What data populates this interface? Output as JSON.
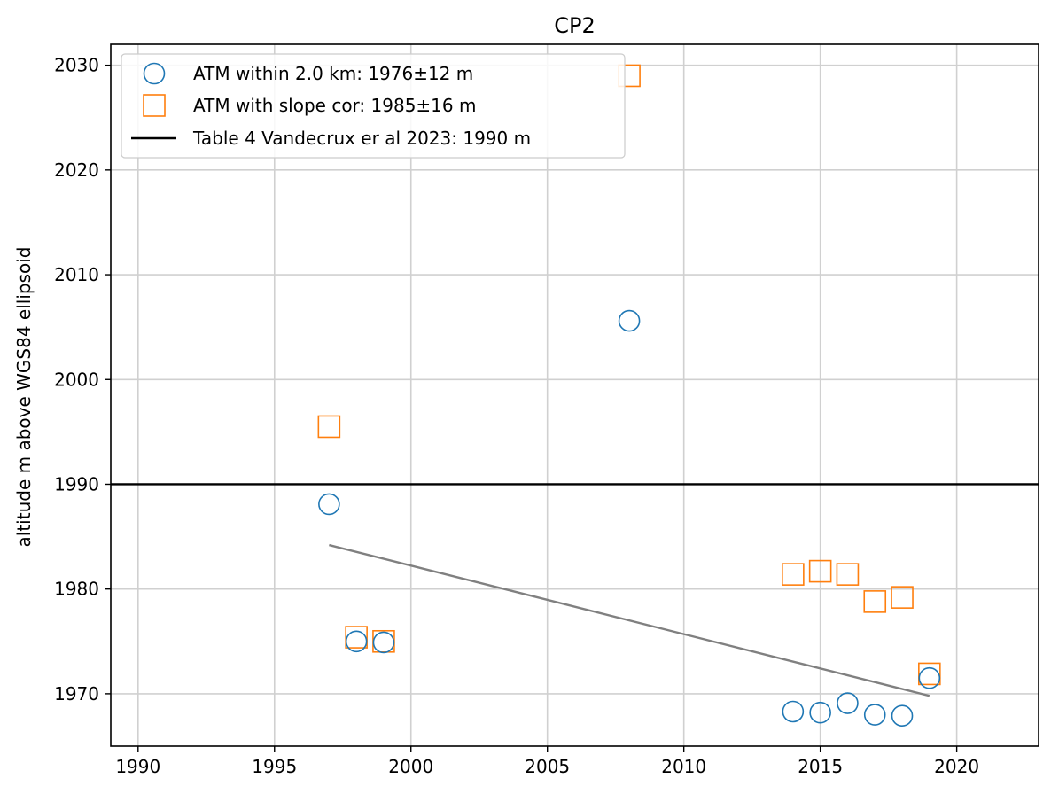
{
  "chart_data": {
    "type": "scatter",
    "title": "CP2",
    "xlabel": "",
    "ylabel": "altitude m above WGS84 ellipsoid",
    "xlim": [
      1989,
      2023
    ],
    "ylim": [
      1965,
      2032
    ],
    "xticks": [
      1990,
      1995,
      2000,
      2005,
      2010,
      2015,
      2020
    ],
    "yticks": [
      1970,
      1980,
      1990,
      2000,
      2010,
      2020,
      2030
    ],
    "grid": true,
    "legend_position": "top-left",
    "series": [
      {
        "name": "ATM within 2.0 km: 1976±12 m",
        "marker": "circle",
        "color": "#1f77b4",
        "x": [
          1997,
          1998,
          1999,
          2008,
          2014,
          2015,
          2016,
          2017,
          2018,
          2019
        ],
        "y": [
          1988.1,
          1975.0,
          1974.9,
          2005.6,
          1968.3,
          1968.2,
          1969.1,
          1968.0,
          1967.9,
          1971.5
        ]
      },
      {
        "name": "ATM with slope cor: 1985±16 m",
        "marker": "square",
        "color": "#ff7f0e",
        "x": [
          1997,
          1998,
          1999,
          2008,
          2014,
          2015,
          2016,
          2017,
          2018,
          2019
        ],
        "y": [
          1995.5,
          1975.4,
          1975.0,
          2029.0,
          1981.4,
          1981.7,
          1981.4,
          1978.8,
          1979.2,
          1971.9
        ]
      }
    ],
    "reference_line": {
      "name": "Table 4 Vandecrux er al 2023: 1990 m",
      "y": 1990,
      "color": "#000000"
    },
    "trend_line": {
      "color": "#808080",
      "x": [
        1997,
        2019
      ],
      "y": [
        1984.2,
        1969.8
      ]
    }
  }
}
